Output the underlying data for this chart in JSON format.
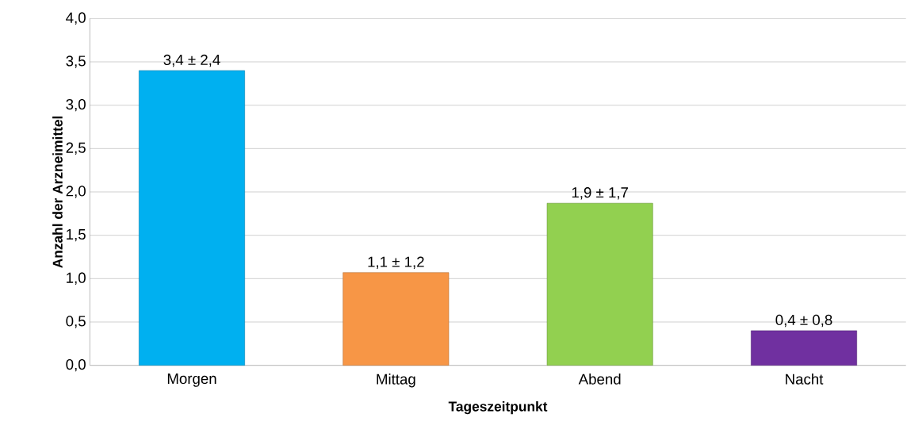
{
  "chart_data": {
    "type": "bar",
    "xlabel": "Tageszeitpunkt",
    "ylabel": "Anzahl der Arzneimittel",
    "categories": [
      "Morgen",
      "Mittag",
      "Abend",
      "Nacht"
    ],
    "values": [
      3.4,
      1.07,
      1.87,
      0.4
    ],
    "colors": [
      "#00b0f0",
      "#f79646",
      "#92d050",
      "#7030a0"
    ],
    "value_labels": [
      "3,4 ± 2,4",
      "1,1 ± 1,2",
      "1,9 ± 1,7",
      "0,4 ± 0,8"
    ],
    "ylim": [
      0,
      4
    ],
    "yticks": [
      {
        "value": 0,
        "label": "0,0"
      },
      {
        "value": 0.5,
        "label": "0,5"
      },
      {
        "value": 1,
        "label": "1,0"
      },
      {
        "value": 1.5,
        "label": "1,5"
      },
      {
        "value": 2,
        "label": "2,0"
      },
      {
        "value": 2.5,
        "label": "2,5"
      },
      {
        "value": 3,
        "label": "3,0"
      },
      {
        "value": 3.5,
        "label": "3,5"
      },
      {
        "value": 4,
        "label": "4,0"
      }
    ],
    "grid": "y"
  }
}
